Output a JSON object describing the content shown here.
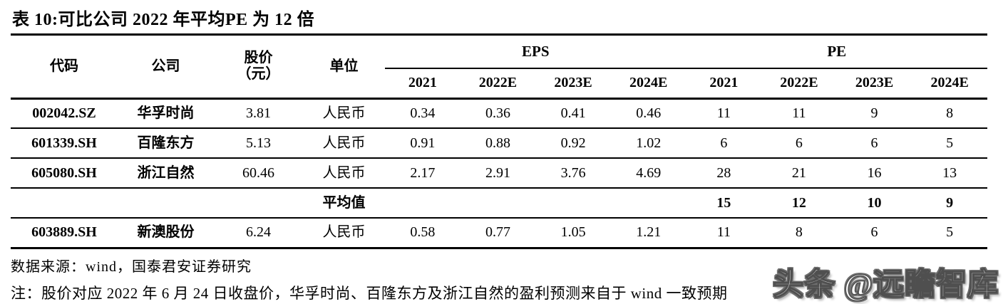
{
  "title": "表 10:可比公司 2022 年平均PE 为 12 倍",
  "table": {
    "headers": {
      "code": "代码",
      "company": "公司",
      "price_line1": "股价",
      "price_line2": "（元）",
      "unit": "单位",
      "eps_group": "EPS",
      "pe_group": "PE",
      "years": [
        "2021",
        "2022E",
        "2023E",
        "2024E",
        "2021",
        "2022E",
        "2023E",
        "2024E"
      ]
    },
    "rows": [
      {
        "code": "002042.SZ",
        "company": "华孚时尚",
        "price": "3.81",
        "unit": "人民币",
        "values": [
          "0.34",
          "0.36",
          "0.41",
          "0.46",
          "11",
          "11",
          "9",
          "8"
        ]
      },
      {
        "code": "601339.SH",
        "company": "百隆东方",
        "price": "5.13",
        "unit": "人民币",
        "values": [
          "0.91",
          "0.88",
          "0.92",
          "1.02",
          "6",
          "6",
          "6",
          "5"
        ]
      },
      {
        "code": "605080.SH",
        "company": "浙江自然",
        "price": "60.46",
        "unit": "人民币",
        "values": [
          "2.17",
          "2.91",
          "3.76",
          "4.69",
          "28",
          "21",
          "16",
          "13"
        ]
      }
    ],
    "average_row": {
      "label": "平均值",
      "values": [
        "",
        "",
        "",
        "",
        "15",
        "12",
        "10",
        "9"
      ]
    },
    "extra_row": {
      "code": "603889.SH",
      "company": "新澳股份",
      "price": "6.24",
      "unit": "人民币",
      "values": [
        "0.58",
        "0.77",
        "1.05",
        "1.21",
        "11",
        "8",
        "6",
        "5"
      ]
    }
  },
  "footer": {
    "source": "数据来源：wind，国泰君安证券研究",
    "note": "注：股价对应 2022 年 6 月 24 日收盘价，华孚时尚、百隆东方及浙江自然的盈利预测来自于 wind 一致预期",
    "watermark": "头条 @远瞻智库"
  },
  "colors": {
    "text": "#000000",
    "rule": "#000000",
    "watermark_outline": "#6e6e6e"
  }
}
